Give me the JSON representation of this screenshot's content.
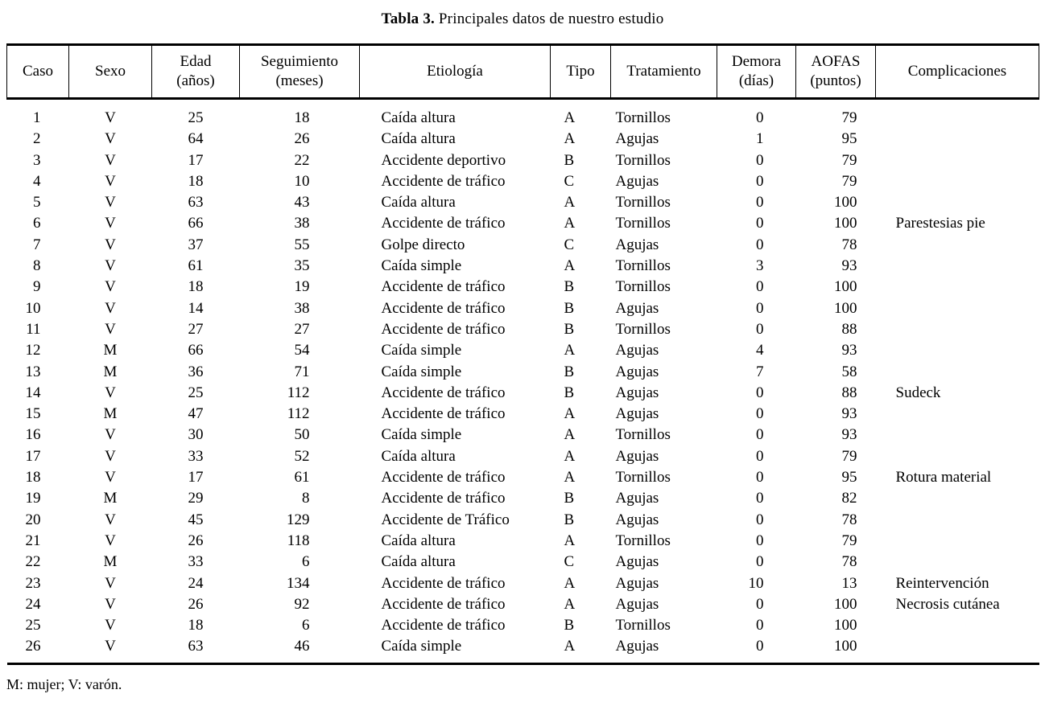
{
  "title": {
    "bold": "Tabla 3.",
    "rest": " Principales datos de nuestro estudio"
  },
  "footnote": "M: mujer; V: varón.",
  "table": {
    "columns": [
      {
        "key": "caso",
        "lines": [
          "Caso"
        ]
      },
      {
        "key": "sexo",
        "lines": [
          "Sexo"
        ]
      },
      {
        "key": "edad",
        "lines": [
          "Edad",
          "(años)"
        ]
      },
      {
        "key": "seguimiento",
        "lines": [
          "Seguimiento",
          "(meses)"
        ]
      },
      {
        "key": "etiologia",
        "lines": [
          "Etiología"
        ]
      },
      {
        "key": "tipo",
        "lines": [
          "Tipo"
        ]
      },
      {
        "key": "tratamiento",
        "lines": [
          "Tratamiento"
        ]
      },
      {
        "key": "demora",
        "lines": [
          "Demora",
          "(días)"
        ]
      },
      {
        "key": "aofas",
        "lines": [
          "AOFAS",
          "(puntos)"
        ]
      },
      {
        "key": "complicaciones",
        "lines": [
          "Complicaciones"
        ]
      }
    ],
    "rows": [
      {
        "caso": "1",
        "sexo": "V",
        "edad": "25",
        "seguimiento": "18",
        "etiologia": "Caída altura",
        "tipo": "A",
        "tratamiento": "Tornillos",
        "demora": "0",
        "aofas": "79",
        "complicaciones": ""
      },
      {
        "caso": "2",
        "sexo": "V",
        "edad": "64",
        "seguimiento": "26",
        "etiologia": "Caída altura",
        "tipo": "A",
        "tratamiento": "Agujas",
        "demora": "1",
        "aofas": "95",
        "complicaciones": ""
      },
      {
        "caso": "3",
        "sexo": "V",
        "edad": "17",
        "seguimiento": "22",
        "etiologia": "Accidente deportivo",
        "tipo": "B",
        "tratamiento": "Tornillos",
        "demora": "0",
        "aofas": "79",
        "complicaciones": ""
      },
      {
        "caso": "4",
        "sexo": "V",
        "edad": "18",
        "seguimiento": "10",
        "etiologia": "Accidente de tráfico",
        "tipo": "C",
        "tratamiento": "Agujas",
        "demora": "0",
        "aofas": "79",
        "complicaciones": ""
      },
      {
        "caso": "5",
        "sexo": "V",
        "edad": "63",
        "seguimiento": "43",
        "etiologia": "Caída altura",
        "tipo": "A",
        "tratamiento": "Tornillos",
        "demora": "0",
        "aofas": "100",
        "complicaciones": ""
      },
      {
        "caso": "6",
        "sexo": "V",
        "edad": "66",
        "seguimiento": "38",
        "etiologia": "Accidente de tráfico",
        "tipo": "A",
        "tratamiento": "Tornillos",
        "demora": "0",
        "aofas": "100",
        "complicaciones": "Parestesias pie"
      },
      {
        "caso": "7",
        "sexo": "V",
        "edad": "37",
        "seguimiento": "55",
        "etiologia": "Golpe directo",
        "tipo": "C",
        "tratamiento": "Agujas",
        "demora": "0",
        "aofas": "78",
        "complicaciones": ""
      },
      {
        "caso": "8",
        "sexo": "V",
        "edad": "61",
        "seguimiento": "35",
        "etiologia": "Caída simple",
        "tipo": "A",
        "tratamiento": "Tornillos",
        "demora": "3",
        "aofas": "93",
        "complicaciones": ""
      },
      {
        "caso": "9",
        "sexo": "V",
        "edad": "18",
        "seguimiento": "19",
        "etiologia": "Accidente de tráfico",
        "tipo": "B",
        "tratamiento": "Tornillos",
        "demora": "0",
        "aofas": "100",
        "complicaciones": ""
      },
      {
        "caso": "10",
        "sexo": "V",
        "edad": "14",
        "seguimiento": "38",
        "etiologia": "Accidente de tráfico",
        "tipo": "B",
        "tratamiento": "Agujas",
        "demora": "0",
        "aofas": "100",
        "complicaciones": ""
      },
      {
        "caso": "11",
        "sexo": "V",
        "edad": "27",
        "seguimiento": "27",
        "etiologia": "Accidente de tráfico",
        "tipo": "B",
        "tratamiento": "Tornillos",
        "demora": "0",
        "aofas": "88",
        "complicaciones": ""
      },
      {
        "caso": "12",
        "sexo": "M",
        "edad": "66",
        "seguimiento": "54",
        "etiologia": "Caída simple",
        "tipo": "A",
        "tratamiento": "Agujas",
        "demora": "4",
        "aofas": "93",
        "complicaciones": ""
      },
      {
        "caso": "13",
        "sexo": "M",
        "edad": "36",
        "seguimiento": "71",
        "etiologia": "Caída simple",
        "tipo": "B",
        "tratamiento": "Agujas",
        "demora": "7",
        "aofas": "58",
        "complicaciones": ""
      },
      {
        "caso": "14",
        "sexo": "V",
        "edad": "25",
        "seguimiento": "112",
        "etiologia": "Accidente de tráfico",
        "tipo": "B",
        "tratamiento": "Agujas",
        "demora": "0",
        "aofas": "88",
        "complicaciones": "Sudeck"
      },
      {
        "caso": "15",
        "sexo": "M",
        "edad": "47",
        "seguimiento": "112",
        "etiologia": "Accidente de tráfico",
        "tipo": "A",
        "tratamiento": "Agujas",
        "demora": "0",
        "aofas": "93",
        "complicaciones": ""
      },
      {
        "caso": "16",
        "sexo": "V",
        "edad": "30",
        "seguimiento": "50",
        "etiologia": "Caída simple",
        "tipo": "A",
        "tratamiento": "Tornillos",
        "demora": "0",
        "aofas": "93",
        "complicaciones": ""
      },
      {
        "caso": "17",
        "sexo": "V",
        "edad": "33",
        "seguimiento": "52",
        "etiologia": "Caída altura",
        "tipo": "A",
        "tratamiento": "Agujas",
        "demora": "0",
        "aofas": "79",
        "complicaciones": ""
      },
      {
        "caso": "18",
        "sexo": "V",
        "edad": "17",
        "seguimiento": "61",
        "etiologia": "Accidente de tráfico",
        "tipo": "A",
        "tratamiento": "Tornillos",
        "demora": "0",
        "aofas": "95",
        "complicaciones": "Rotura material"
      },
      {
        "caso": "19",
        "sexo": "M",
        "edad": "29",
        "seguimiento": "8",
        "etiologia": "Accidente de tráfico",
        "tipo": "B",
        "tratamiento": "Agujas",
        "demora": "0",
        "aofas": "82",
        "complicaciones": ""
      },
      {
        "caso": "20",
        "sexo": "V",
        "edad": "45",
        "seguimiento": "129",
        "etiologia": "Accidente de Tráfico",
        "tipo": "B",
        "tratamiento": "Agujas",
        "demora": "0",
        "aofas": "78",
        "complicaciones": ""
      },
      {
        "caso": "21",
        "sexo": "V",
        "edad": "26",
        "seguimiento": "118",
        "etiologia": "Caída altura",
        "tipo": "A",
        "tratamiento": "Tornillos",
        "demora": "0",
        "aofas": "79",
        "complicaciones": ""
      },
      {
        "caso": "22",
        "sexo": "M",
        "edad": "33",
        "seguimiento": "6",
        "etiologia": "Caída altura",
        "tipo": "C",
        "tratamiento": "Agujas",
        "demora": "0",
        "aofas": "78",
        "complicaciones": ""
      },
      {
        "caso": "23",
        "sexo": "V",
        "edad": "24",
        "seguimiento": "134",
        "etiologia": "Accidente de tráfico",
        "tipo": "A",
        "tratamiento": "Agujas",
        "demora": "10",
        "aofas": "13",
        "complicaciones": "Reintervención"
      },
      {
        "caso": "24",
        "sexo": "V",
        "edad": "26",
        "seguimiento": "92",
        "etiologia": "Accidente de tráfico",
        "tipo": "A",
        "tratamiento": "Agujas",
        "demora": "0",
        "aofas": "100",
        "complicaciones": "Necrosis cutánea"
      },
      {
        "caso": "25",
        "sexo": "V",
        "edad": "18",
        "seguimiento": "6",
        "etiologia": "Accidente de tráfico",
        "tipo": "B",
        "tratamiento": "Tornillos",
        "demora": "0",
        "aofas": "100",
        "complicaciones": ""
      },
      {
        "caso": "26",
        "sexo": "V",
        "edad": "63",
        "seguimiento": "46",
        "etiologia": "Caída simple",
        "tipo": "A",
        "tratamiento": "Agujas",
        "demora": "0",
        "aofas": "100",
        "complicaciones": ""
      }
    ]
  }
}
